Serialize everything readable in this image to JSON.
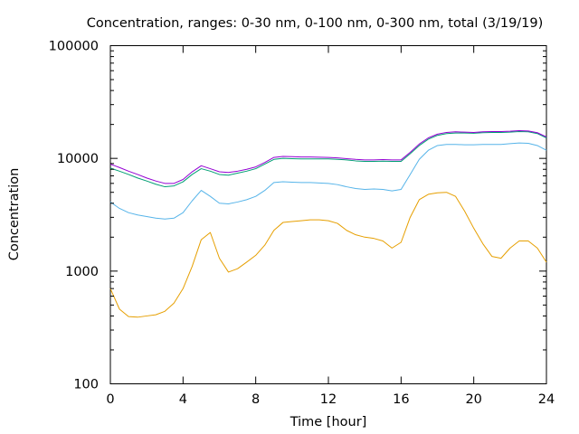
{
  "chart_data": {
    "type": "line",
    "title": "Concentration, ranges: 0-30 nm, 0-100 nm, 0-300 nm, total (3/19/19)",
    "xlabel": "Time [hour]",
    "ylabel": "Concentration",
    "xlim": [
      0,
      24
    ],
    "ylim": [
      100,
      100000
    ],
    "yscale": "log",
    "grid": false,
    "xticks": [
      0,
      4,
      8,
      12,
      16,
      20,
      24
    ],
    "xtick_labels": [
      "0",
      "4",
      "8",
      "12",
      "16",
      "20",
      "24"
    ],
    "yticks": [
      100,
      1000,
      10000,
      100000
    ],
    "ytick_labels": [
      "100",
      "1000",
      "10000",
      "100000"
    ],
    "x": [
      0,
      0.5,
      1,
      1.5,
      2,
      2.5,
      3,
      3.5,
      4,
      4.5,
      5,
      5.5,
      6,
      6.5,
      7,
      7.5,
      8,
      8.5,
      9,
      9.5,
      10,
      10.5,
      11,
      11.5,
      12,
      12.5,
      13,
      13.5,
      14,
      14.5,
      15,
      15.5,
      16,
      16.5,
      17,
      17.5,
      18,
      18.5,
      19,
      19.5,
      20,
      20.5,
      21,
      21.5,
      22,
      22.5,
      23,
      23.5,
      24
    ],
    "series": [
      {
        "color": "#e69f00",
        "values": [
          700,
          460,
          395,
          390,
          400,
          410,
          440,
          520,
          700,
          1100,
          1900,
          2200,
          1300,
          980,
          1050,
          1200,
          1380,
          1700,
          2300,
          2700,
          2750,
          2800,
          2850,
          2850,
          2800,
          2650,
          2300,
          2100,
          2000,
          1950,
          1850,
          1600,
          1800,
          3000,
          4300,
          4800,
          4950,
          5000,
          4600,
          3400,
          2400,
          1750,
          1350,
          1300,
          1600,
          1850,
          1850,
          1600,
          1200
        ]
      },
      {
        "color": "#56b4e9",
        "values": [
          4100,
          3600,
          3300,
          3150,
          3050,
          2950,
          2900,
          2950,
          3300,
          4200,
          5200,
          4600,
          4000,
          3950,
          4100,
          4300,
          4600,
          5200,
          6100,
          6200,
          6150,
          6100,
          6100,
          6050,
          6000,
          5850,
          5600,
          5400,
          5300,
          5350,
          5300,
          5150,
          5300,
          7200,
          9800,
          11800,
          13000,
          13300,
          13300,
          13200,
          13200,
          13300,
          13300,
          13300,
          13500,
          13700,
          13600,
          13000,
          11800
        ]
      },
      {
        "color": "#009e73",
        "values": [
          8200,
          7700,
          7200,
          6700,
          6300,
          5900,
          5600,
          5700,
          6200,
          7200,
          8100,
          7700,
          7200,
          7100,
          7400,
          7700,
          8100,
          8900,
          9800,
          10000,
          9950,
          9900,
          9900,
          9900,
          9900,
          9800,
          9700,
          9500,
          9400,
          9400,
          9450,
          9400,
          9400,
          11000,
          13000,
          14800,
          16000,
          16600,
          16800,
          16800,
          16700,
          16900,
          17000,
          17000,
          17100,
          17300,
          17200,
          16600,
          15200
        ]
      },
      {
        "color": "#9400d3",
        "values": [
          8900,
          8300,
          7700,
          7200,
          6700,
          6300,
          6000,
          6000,
          6500,
          7600,
          8600,
          8100,
          7600,
          7500,
          7700,
          8000,
          8400,
          9200,
          10200,
          10400,
          10350,
          10300,
          10300,
          10250,
          10200,
          10100,
          9950,
          9800,
          9700,
          9700,
          9750,
          9700,
          9700,
          11300,
          13400,
          15200,
          16400,
          17000,
          17200,
          17100,
          17000,
          17200,
          17300,
          17300,
          17400,
          17600,
          17500,
          16900,
          15500
        ]
      }
    ]
  }
}
